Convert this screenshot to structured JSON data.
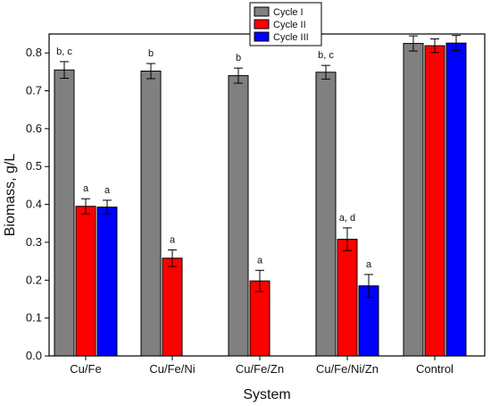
{
  "chart_data": {
    "type": "bar",
    "xlabel": "System",
    "ylabel": "Biomass, g/L",
    "ylim": [
      0,
      0.85
    ],
    "yticks": [
      0.0,
      0.1,
      0.2,
      0.3,
      0.4,
      0.5,
      0.6,
      0.7,
      0.8
    ],
    "ytick_labels": [
      "0.0",
      "0.1",
      "0.2",
      "0.3",
      "0.4",
      "0.5",
      "0.6",
      "0.7",
      "0.8"
    ],
    "categories": [
      "Cu/Fe",
      "Cu/Fe/Ni",
      "Cu/Fe/Zn",
      "Cu/Fe/Ni/Zn",
      "Control"
    ],
    "legend_position": "top-center",
    "series": [
      {
        "name": "Cycle I",
        "color": "#808080",
        "values": [
          0.755,
          0.752,
          0.74,
          0.749,
          0.825
        ],
        "errors": [
          0.022,
          0.02,
          0.02,
          0.018,
          0.02
        ],
        "sig_labels": [
          "b, c",
          "b",
          "b",
          "b, c",
          ""
        ]
      },
      {
        "name": "Cycle II",
        "color": "#ff0000",
        "values": [
          0.395,
          0.258,
          0.198,
          0.308,
          0.819
        ],
        "errors": [
          0.02,
          0.022,
          0.028,
          0.03,
          0.018
        ],
        "sig_labels": [
          "a",
          "a",
          "a",
          "a, d",
          ""
        ]
      },
      {
        "name": "Cycle III",
        "color": "#0000ff",
        "values": [
          0.393,
          null,
          null,
          0.185,
          0.826
        ],
        "errors": [
          0.018,
          null,
          null,
          0.03,
          0.02
        ],
        "sig_labels": [
          "a",
          "",
          "",
          "a",
          ""
        ]
      }
    ]
  }
}
